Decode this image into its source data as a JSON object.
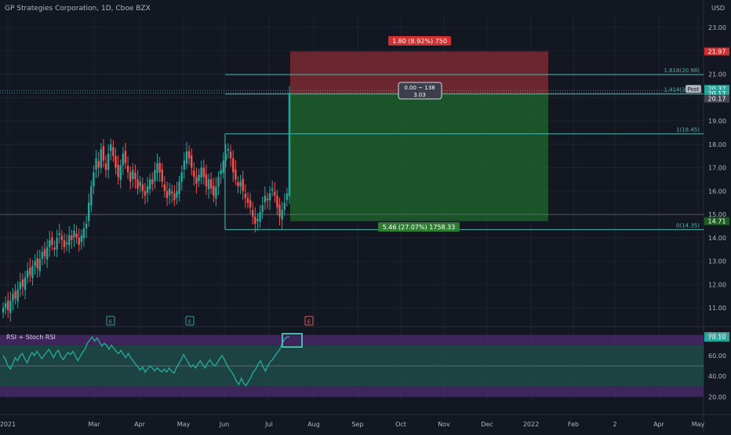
{
  "header": {
    "title": "GP Strategies Corporation, 1D, Cboe BZX",
    "currency": "USD"
  },
  "colors": {
    "background": "#131722",
    "grid": "#1e222d",
    "axis_text": "#b2b5be",
    "bull": "#26a69a",
    "bear": "#ef5350",
    "fib": "#4db6ac",
    "target_zone": "#1f5f2a",
    "stop_zone": "#7a2a31",
    "rsi_line": "#26a69a",
    "rsi_band": "#1f4f4a",
    "rsi_extreme": "#4a2a6b"
  },
  "chart_data": [
    {
      "type": "candlestick",
      "title": "GP Strategies Corporation, 1D, Cboe BZX",
      "ylabel": "USD",
      "ylim": [
        10.3,
        23.5
      ],
      "y_ticks": [
        "23.00",
        "22.00",
        "21.00",
        "20.00",
        "19.00",
        "18.00",
        "17.00",
        "16.00",
        "15.00",
        "14.00",
        "13.00",
        "12.00",
        "11.00"
      ],
      "x_ticks": [
        "2021",
        "Mar",
        "Apr",
        "May",
        "Jun",
        "Jul",
        "Aug",
        "Sep",
        "Oct",
        "Nov",
        "Dec",
        "2022",
        "Feb",
        "2",
        "Apr",
        "May"
      ],
      "price_badges": [
        {
          "label": "21.97",
          "value": 21.97,
          "kind": "stop"
        },
        {
          "label": "Post",
          "value": 20.37,
          "kind": "post",
          "text": "20.37"
        },
        {
          "label": "20.17",
          "value": 20.17,
          "kind": "last"
        },
        {
          "label": "20.17",
          "value": 19.95,
          "kind": "dark"
        },
        {
          "label": "14.71",
          "value": 14.71,
          "kind": "entry"
        }
      ],
      "closes": [
        11.0,
        11.2,
        10.9,
        11.3,
        11.6,
        11.4,
        11.8,
        12.1,
        11.9,
        12.3,
        12.6,
        12.4,
        12.8,
        13.0,
        12.7,
        13.1,
        13.4,
        13.2,
        13.6,
        13.9,
        13.7,
        13.5,
        14.0,
        14.2,
        13.9,
        13.6,
        13.8,
        14.1,
        13.9,
        14.3,
        14.0,
        13.7,
        14.1,
        14.4,
        14.6,
        15.5,
        16.2,
        16.8,
        17.4,
        17.0,
        17.8,
        17.3,
        16.9,
        17.6,
        18.0,
        17.5,
        17.0,
        16.6,
        17.1,
        17.6,
        17.2,
        16.8,
        16.4,
        16.9,
        16.5,
        16.1,
        16.4,
        16.0,
        15.8,
        16.2,
        16.5,
        16.3,
        16.9,
        17.2,
        16.8,
        16.4,
        16.0,
        15.7,
        16.1,
        15.9,
        15.6,
        16.0,
        16.4,
        16.8,
        17.3,
        17.7,
        17.4,
        17.0,
        16.6,
        16.3,
        16.7,
        17.0,
        16.6,
        16.2,
        16.5,
        16.1,
        15.8,
        16.2,
        16.6,
        16.9,
        17.3,
        17.6,
        17.8,
        17.4,
        16.8,
        16.5,
        16.2,
        16.4,
        16.0,
        15.7,
        15.5,
        15.3,
        14.9,
        14.6,
        14.8,
        15.1,
        15.4,
        15.8,
        15.6,
        15.9,
        16.1,
        15.8,
        15.3,
        14.9,
        15.2,
        15.5,
        15.9,
        20.2
      ],
      "fib_levels": [
        {
          "label": "1.618(20.98)",
          "value": 20.98
        },
        {
          "label": "1.414(20.15)",
          "value": 20.15
        },
        {
          "label": "1(18.45)",
          "value": 18.45
        },
        {
          "label": "0(14.35)",
          "value": 14.35
        }
      ],
      "horizontal_lines": [
        15.0,
        20.3,
        20.2
      ],
      "position": {
        "entry": 20.17,
        "stop": 21.97,
        "target": 14.71,
        "stop_label": "1.80 (8.92%) 750",
        "target_label": "5.46 (27.07%) 1758.33",
        "center_label_1": "0.00 ~ 138",
        "center_label_2": "3.03"
      },
      "earnings_markers": [
        {
          "label": "E",
          "kind": "past"
        },
        {
          "label": "E",
          "kind": "past"
        },
        {
          "label": "E",
          "kind": "future"
        }
      ]
    },
    {
      "type": "line",
      "title": "RSI + Stoch RSI",
      "ylim": [
        15,
        85
      ],
      "y_ticks": [
        "80.00",
        "60.00",
        "40.00",
        "20.00"
      ],
      "current_label": "78.10",
      "bands": [
        20,
        30,
        50,
        70,
        80
      ],
      "values": [
        60,
        56,
        50,
        47,
        52,
        58,
        55,
        60,
        62,
        57,
        53,
        59,
        63,
        60,
        64,
        61,
        57,
        60,
        63,
        66,
        62,
        58,
        63,
        65,
        59,
        56,
        60,
        63,
        61,
        64,
        60,
        55,
        59,
        63,
        66,
        72,
        75,
        78,
        74,
        77,
        73,
        69,
        72,
        70,
        66,
        70,
        67,
        64,
        62,
        65,
        61,
        58,
        62,
        58,
        55,
        52,
        49,
        46,
        49,
        44,
        47,
        50,
        48,
        45,
        48,
        46,
        44,
        47,
        44,
        48,
        45,
        43,
        48,
        52,
        56,
        61,
        57,
        53,
        49,
        51,
        48,
        52,
        55,
        51,
        48,
        53,
        56,
        52,
        50,
        53,
        57,
        60,
        56,
        51,
        47,
        44,
        40,
        35,
        32,
        38,
        33,
        31,
        35,
        39,
        44,
        47,
        52,
        55,
        49,
        45,
        50,
        54,
        56,
        60,
        63,
        66,
        72,
        76,
        78,
        78.1
      ]
    }
  ]
}
